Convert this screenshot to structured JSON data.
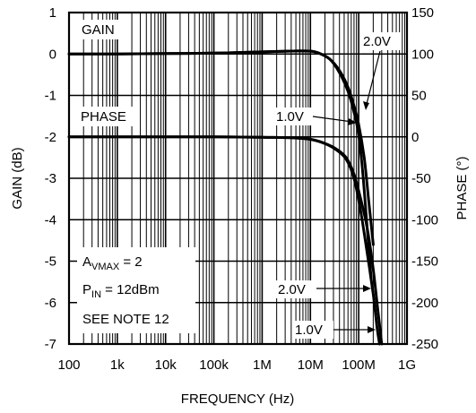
{
  "chart_data": {
    "type": "line",
    "xlabel": "FREQUENCY (Hz)",
    "ylabel_left": "GAIN (dB)",
    "ylabel_right": "PHASE (°)",
    "x_scale": "log",
    "xlim": [
      100,
      1000000000
    ],
    "x_tick_labels": [
      "100",
      "1k",
      "10k",
      "100k",
      "1M",
      "10M",
      "100M",
      "1G"
    ],
    "ylim_left": [
      -7,
      1
    ],
    "y_left_tick_labels": [
      "1",
      "0",
      "-1",
      "-2",
      "-3",
      "-4",
      "-5",
      "-6",
      "-7"
    ],
    "ylim_right": [
      -250,
      150
    ],
    "y_right_tick_labels": [
      "150",
      "100",
      "50",
      "0",
      "-50",
      "-100",
      "-150",
      "-200",
      "-250"
    ],
    "grid": true,
    "series": [
      {
        "name": "GAIN 2.0V",
        "axis": "left",
        "x": [
          100,
          1000,
          10000,
          100000,
          1000000,
          4000000,
          10000000,
          15000000,
          25000000,
          40000000,
          60000000,
          80000000,
          100000000,
          130000000,
          160000000,
          200000000
        ],
        "y": [
          0,
          0,
          0.01,
          0.02,
          0.05,
          0.07,
          0.07,
          0.02,
          -0.12,
          -0.4,
          -0.8,
          -1.25,
          -1.7,
          -2.5,
          -3.5,
          -4.6
        ]
      },
      {
        "name": "GAIN 1.0V",
        "axis": "left",
        "x": [
          100,
          1000,
          10000,
          100000,
          1000000,
          4000000,
          10000000,
          15000000,
          25000000,
          40000000,
          60000000,
          80000000,
          100000000,
          120000000,
          150000000,
          180000000
        ],
        "y": [
          0,
          0,
          0.01,
          0.02,
          0.05,
          0.07,
          0.07,
          0.02,
          -0.12,
          -0.45,
          -0.9,
          -1.4,
          -1.95,
          -2.8,
          -4.2,
          -5.4
        ]
      },
      {
        "name": "PHASE 2.0V",
        "axis": "right",
        "x": [
          100,
          1000,
          10000,
          100000,
          1000000,
          4000000,
          10000000,
          20000000,
          35000000,
          55000000,
          80000000,
          110000000,
          150000000,
          200000000,
          250000000,
          300000000
        ],
        "y": [
          0,
          0,
          0,
          0,
          -0.5,
          -1,
          -3,
          -8,
          -15,
          -25,
          -45,
          -75,
          -110,
          -160,
          -210,
          -250
        ]
      },
      {
        "name": "PHASE 1.0V",
        "axis": "right",
        "x": [
          100,
          1000,
          10000,
          100000,
          1000000,
          4000000,
          10000000,
          20000000,
          35000000,
          55000000,
          80000000,
          110000000,
          150000000,
          200000000,
          240000000,
          270000000
        ],
        "y": [
          0,
          0,
          0,
          0,
          -0.5,
          -1,
          -3,
          -8,
          -16,
          -27,
          -50,
          -90,
          -140,
          -190,
          -230,
          -250
        ]
      }
    ],
    "annotations": {
      "gain_label": "GAIN",
      "phase_label": "PHASE",
      "top_2v": "2.0V",
      "top_1v": "1.0V",
      "bottom_2v": "2.0V",
      "bottom_1v": "1.0V",
      "avmax_main": "A",
      "avmax_sub": "VMAX",
      "avmax_value": " = 2",
      "pin_main": "P",
      "pin_sub": "IN",
      "pin_value": " = 12dBm",
      "note": "SEE NOTE 12"
    }
  }
}
